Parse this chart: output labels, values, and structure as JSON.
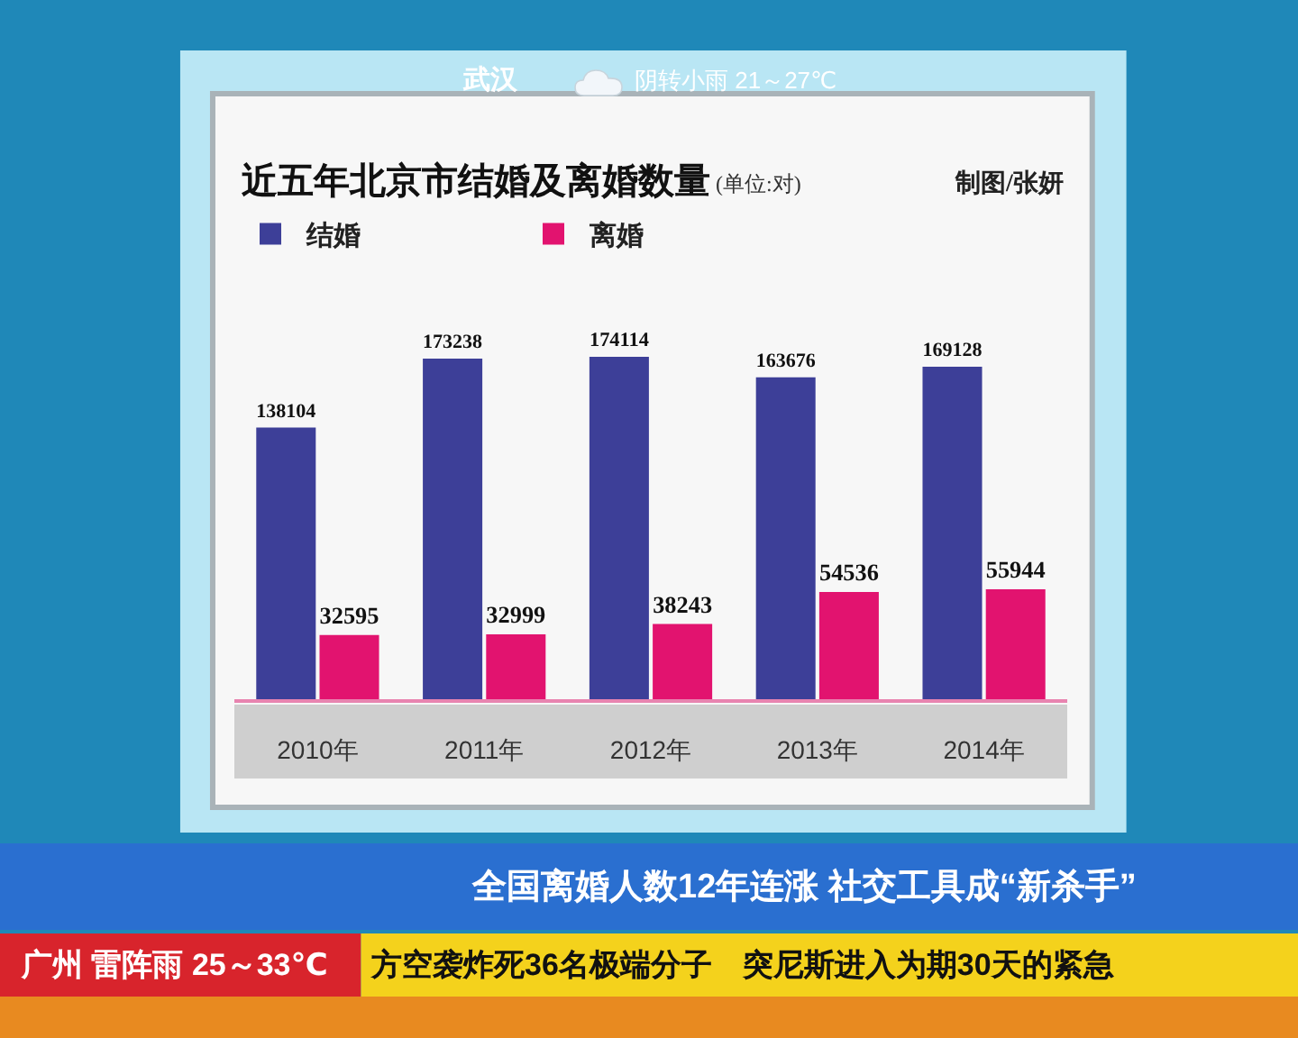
{
  "chart_data": {
    "type": "bar",
    "title": "近五年北京市结婚及离婚数量",
    "subtitle": "(单位:对)",
    "categories": [
      "2010年",
      "2011年",
      "2012年",
      "2013年",
      "2014年"
    ],
    "series": [
      {
        "name": "结婚",
        "color": "#3d3f98",
        "values": [
          138104,
          173238,
          174114,
          163676,
          169128
        ]
      },
      {
        "name": "离婚",
        "color": "#e2136f",
        "values": [
          32595,
          32999,
          38243,
          54536,
          55944
        ]
      }
    ],
    "data_labels": true,
    "legend": "top left",
    "tick_labels": "x",
    "annotations": [
      "制图/张妍",
      "武汉",
      "阴转小雨 21～27℃",
      "全国离婚人数12年连涨 社交工具成“新杀手”",
      "广州 雷阵雨 25～33℃",
      "方空袭炸死36名极端分子　突尼斯进入为期30天的紧急"
    ]
  }
}
